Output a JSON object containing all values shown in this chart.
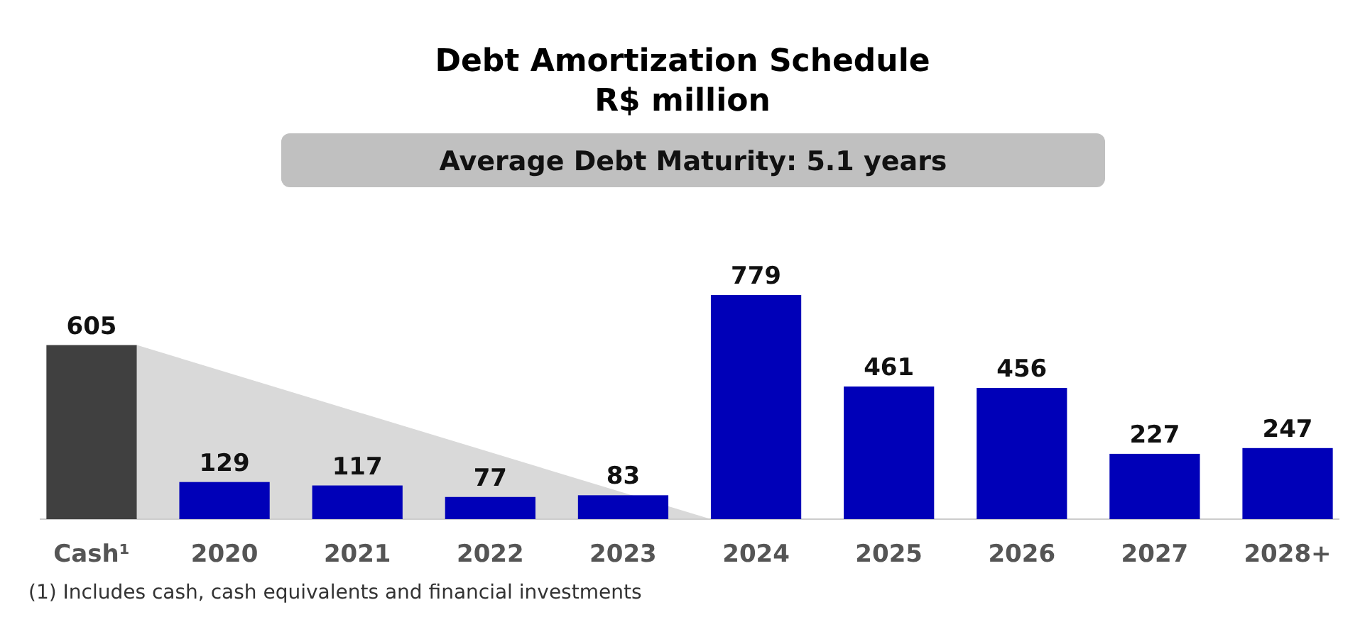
{
  "chart_data": {
    "type": "bar",
    "title": "Debt Amortization Schedule",
    "subtitle": "R$ million",
    "annotations": [
      "Average Debt Maturity: 5.1 years",
      "(1) Includes cash, cash equivalents and financial investments"
    ],
    "categories": [
      "Cash¹",
      "2020",
      "2021",
      "2022",
      "2023",
      "2024",
      "2025",
      "2026",
      "2027",
      "2028+"
    ],
    "values": [
      605,
      129,
      117,
      77,
      83,
      779,
      461,
      456,
      227,
      247
    ],
    "colors": [
      "#404040",
      "#0000b8",
      "#0000b8",
      "#0000b8",
      "#0000b8",
      "#0000b8",
      "#0000b8",
      "#0000b8",
      "#0000b8",
      "#0000b8"
    ],
    "ylim": [
      0,
      779
    ],
    "data_labels": true
  }
}
